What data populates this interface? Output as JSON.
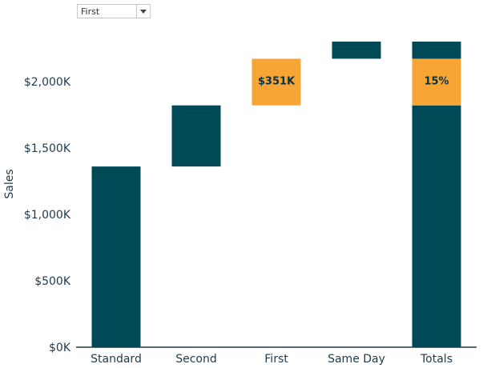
{
  "filter": {
    "selected": "First",
    "icon": "chevron-down-icon"
  },
  "chart_data": {
    "type": "bar",
    "subtype": "waterfall",
    "categories": [
      "Standard",
      "Second",
      "First",
      "Same Day",
      "Totals"
    ],
    "bars": [
      {
        "category": "Standard",
        "start": 0,
        "end": 1360,
        "color": "#004a58",
        "label": ""
      },
      {
        "category": "Second",
        "start": 1360,
        "end": 1820,
        "color": "#004a58",
        "label": ""
      },
      {
        "category": "First",
        "start": 1820,
        "end": 2171,
        "color": "#f7a535",
        "label": "$351K"
      },
      {
        "category": "Same Day",
        "start": 2171,
        "end": 2300,
        "color": "#004a58",
        "label": ""
      },
      {
        "category": "Totals",
        "start": 0,
        "end": 1820,
        "color": "#004a58",
        "label": ""
      },
      {
        "category": "Totals",
        "start": 1820,
        "end": 2171,
        "color": "#f7a535",
        "label": "15%"
      },
      {
        "category": "Totals",
        "start": 2171,
        "end": 2300,
        "color": "#004a58",
        "label": ""
      }
    ],
    "highlight_label": "$351K",
    "highlight_share": "15%",
    "ylabel": "Sales",
    "xlabel": "",
    "yticks": [
      0,
      500,
      1000,
      1500,
      2000
    ],
    "ytick_labels": [
      "$0K",
      "$500K",
      "$1,000K",
      "$1,500K",
      "$2,000K"
    ],
    "ylim": [
      0,
      2300
    ],
    "units": "thousands USD",
    "grid": false,
    "colors": {
      "base": "#004a58",
      "highlight": "#f7a535",
      "axis": "#1f3a4a"
    }
  }
}
